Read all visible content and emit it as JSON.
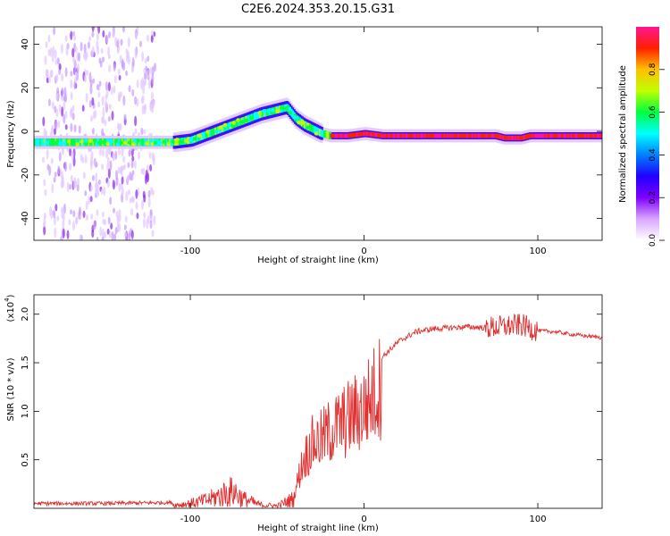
{
  "title": "C2E6.2024.353.20.15.G31",
  "chart_data": [
    {
      "type": "heatmap",
      "xlabel": "Height of straight line (km)",
      "ylabel": "Frequency (Hz)",
      "xlim": [
        -190,
        137
      ],
      "ylim": [
        -50,
        48
      ],
      "xticks": [
        -100,
        0,
        100
      ],
      "yticks": [
        -40,
        -20,
        0,
        20,
        40
      ],
      "colorbar": {
        "label": "Normalized spectral amplitude",
        "ticks": [
          "0.0",
          "0.2",
          "0.4",
          "0.6",
          "0.8"
        ],
        "range": [
          0,
          1
        ],
        "colors": [
          "#ffffff",
          "#d9a6ff",
          "#7f00ff",
          "#2000ff",
          "#0080ff",
          "#00ffff",
          "#00ff40",
          "#c0ff00",
          "#ffc000",
          "#ff2000",
          "#ff1493"
        ]
      },
      "ridge": {
        "x": [
          -190,
          -160,
          -130,
          -110,
          -100,
          -90,
          -80,
          -70,
          -60,
          -50,
          -45,
          -40,
          -35,
          -30,
          -25,
          -20,
          -10,
          0,
          10,
          50,
          75,
          80,
          90,
          95,
          110,
          137
        ],
        "y": [
          -5,
          -5,
          -5,
          -5,
          -4,
          -1,
          2,
          5,
          8,
          10,
          11,
          6,
          3,
          1,
          -1,
          -2,
          -2,
          -1,
          -2,
          -2,
          -2,
          -3,
          -3,
          -2,
          -2,
          -2
        ]
      },
      "noise_region_x": [
        -185,
        -120
      ]
    },
    {
      "type": "line",
      "xlabel": "Height of straight line (km)",
      "ylabel": "SNR (10 * v/v)",
      "yscale_label": "(x10^4)",
      "xlim": [
        -190,
        137
      ],
      "ylim": [
        0,
        2.2
      ],
      "xticks": [
        -100,
        0,
        100
      ],
      "yticks": [
        0.5,
        1.0,
        1.5,
        2.0
      ],
      "series": [
        {
          "color": "#e03030",
          "envelope_x": [
            -190,
            -150,
            -110,
            -100,
            -90,
            -80,
            -75,
            -70,
            -60,
            -50,
            -40,
            -35,
            -30,
            -25,
            -20,
            -10,
            0,
            10,
            20,
            30,
            40,
            50,
            60,
            70,
            80,
            90,
            100,
            110,
            120,
            137
          ],
          "envelope_y": [
            0.05,
            0.05,
            0.06,
            0.1,
            0.17,
            0.3,
            0.35,
            0.2,
            0.07,
            0.05,
            0.2,
            0.6,
            0.8,
            0.85,
            0.95,
            1.1,
            1.25,
            1.55,
            1.72,
            1.82,
            1.85,
            1.86,
            1.87,
            1.86,
            1.87,
            1.89,
            1.83,
            1.82,
            1.79,
            1.76
          ]
        }
      ]
    }
  ]
}
